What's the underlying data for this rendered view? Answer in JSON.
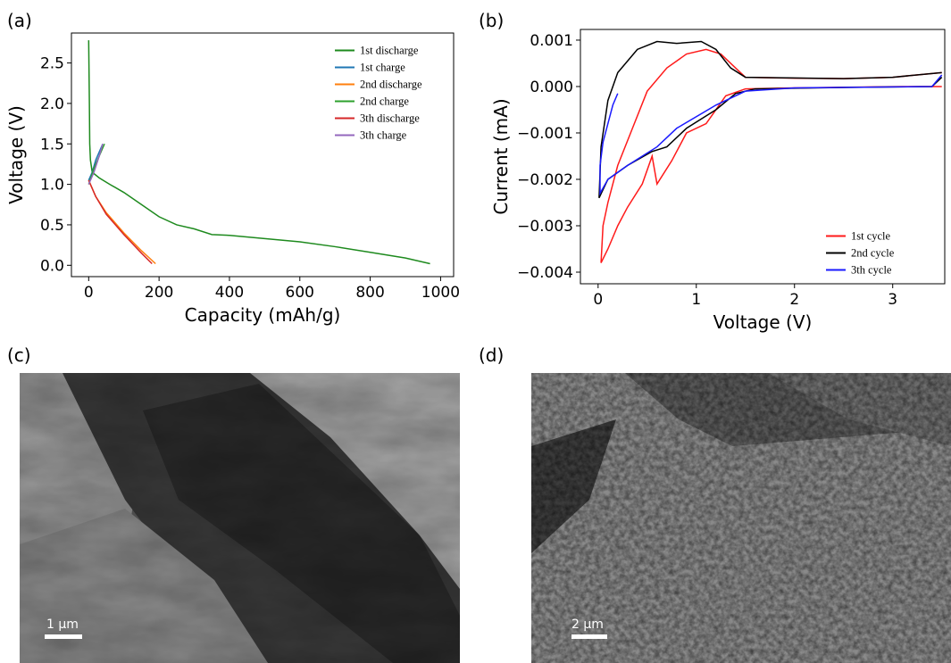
{
  "chart_data": [
    {
      "type": "line",
      "x_label": "Capacity (mAh/g)",
      "y_label": "Voltage (V)",
      "xlim": [
        -49,
        1037
      ],
      "ylim": [
        -0.14,
        2.87
      ],
      "xticks": [
        0,
        200,
        400,
        600,
        800,
        1000
      ],
      "yticks": [
        {
          "value": 0,
          "label": "0.0"
        },
        {
          "value": 0.5,
          "label": "0.5"
        },
        {
          "value": 1,
          "label": "1.0"
        },
        {
          "value": 1.5,
          "label": "1.5"
        },
        {
          "value": 2,
          "label": "2.0"
        },
        {
          "value": 2.5,
          "label": "2.5"
        }
      ],
      "legend": "upper right",
      "series": [
        {
          "name": "1st discharge",
          "color": "#1e8a1e",
          "x": [
            0,
            2,
            3,
            5,
            10,
            30,
            60,
            100,
            150,
            200,
            250,
            300,
            350,
            400,
            500,
            600,
            700,
            800,
            900,
            970
          ],
          "values": [
            2.78,
            2.0,
            1.5,
            1.3,
            1.15,
            1.08,
            1.0,
            0.9,
            0.75,
            0.6,
            0.5,
            0.45,
            0.38,
            0.37,
            0.33,
            0.29,
            0.23,
            0.16,
            0.09,
            0.02
          ]
        },
        {
          "name": "1st charge",
          "color": "#1f77b4",
          "x": [
            0,
            10,
            20,
            30,
            40
          ],
          "values": [
            1.05,
            1.15,
            1.3,
            1.4,
            1.5
          ]
        },
        {
          "name": "2nd discharge",
          "color": "#ff7f0e",
          "x": [
            0,
            20,
            50,
            100,
            150,
            190
          ],
          "values": [
            1.05,
            0.85,
            0.65,
            0.4,
            0.18,
            0.02
          ]
        },
        {
          "name": "2nd charge",
          "color": "#2ca02c",
          "x": [
            0,
            15,
            30,
            45
          ],
          "values": [
            1.0,
            1.2,
            1.35,
            1.5
          ]
        },
        {
          "name": "3th discharge",
          "color": "#d62728",
          "x": [
            0,
            20,
            50,
            100,
            150,
            180
          ],
          "values": [
            1.05,
            0.85,
            0.63,
            0.38,
            0.15,
            0.02
          ]
        },
        {
          "name": "3th charge",
          "color": "#9467bd",
          "x": [
            0,
            15,
            30,
            40
          ],
          "values": [
            1.0,
            1.15,
            1.35,
            1.5
          ]
        }
      ]
    },
    {
      "type": "line",
      "x_label": "Voltage (V)",
      "y_label": "Current (mA)",
      "xlim": [
        -0.18,
        3.53
      ],
      "ylim": [
        -0.00425,
        0.00123
      ],
      "xticks": [
        0,
        1,
        2,
        3
      ],
      "yticks": [
        {
          "value": -0.004,
          "label": "−0.004"
        },
        {
          "value": -0.003,
          "label": "−0.003"
        },
        {
          "value": -0.002,
          "label": "−0.002"
        },
        {
          "value": -0.001,
          "label": "−0.001"
        },
        {
          "value": 0,
          "label": "0.000"
        },
        {
          "value": 0.001,
          "label": "0.001"
        }
      ],
      "legend": "lower right",
      "series": [
        {
          "name": "1st cycle",
          "color": "#ff1a1a",
          "x": [
            3.5,
            3.1,
            2,
            1.5,
            1.3,
            1.2,
            1.1,
            0.9,
            0.75,
            0.6,
            0.55,
            0.45,
            0.3,
            0.2,
            0.1,
            0.03,
            0.05,
            0.1,
            0.2,
            0.35,
            0.5,
            0.7,
            0.9,
            1.1,
            1.25,
            1.4,
            1.5,
            2,
            2.5,
            3,
            3.5
          ],
          "values": [
            0,
            0,
            -3e-05,
            -5e-05,
            -0.0002,
            -0.0005,
            -0.0008,
            -0.001,
            -0.0016,
            -0.0021,
            -0.0015,
            -0.0021,
            -0.0026,
            -0.003,
            -0.0035,
            -0.0038,
            -0.003,
            -0.0025,
            -0.0017,
            -0.0009,
            -0.0001,
            0.0004,
            0.0007,
            0.0008,
            0.0007,
            0.0004,
            0.0002,
            0.00018,
            0.00017,
            0.0002,
            0.0003
          ]
        },
        {
          "name": "2nd cycle",
          "color": "#000000",
          "x": [
            3.5,
            3,
            2.5,
            1.5,
            1.35,
            1.2,
            1.05,
            0.8,
            0.6,
            0.4,
            0.2,
            0.1,
            0.03,
            0.01,
            0.1,
            0.3,
            0.55,
            0.7,
            0.9,
            1.2,
            1.4,
            1.6,
            2.5,
            3.4,
            3.5
          ],
          "values": [
            0.0003,
            0.0002,
            0.00017,
            0.0002,
            0.0004,
            0.0008,
            0.00097,
            0.00093,
            0.00097,
            0.0008,
            0.0003,
            -0.0003,
            -0.0013,
            -0.0024,
            -0.002,
            -0.0017,
            -0.0014,
            -0.0013,
            -0.0009,
            -0.0005,
            -0.00015,
            -5e-05,
            -2e-05,
            0,
            0.0002
          ]
        },
        {
          "name": "3th cycle",
          "color": "#1a1aff",
          "x": [
            3.5,
            3.4,
            2,
            1.5,
            1.2,
            0.8,
            0.6,
            0.3,
            0.1,
            0.02,
            0.02,
            0.05,
            0.1,
            0.15,
            0.2
          ],
          "values": [
            0.00025,
            0,
            -3e-05,
            -0.0001,
            -0.0004,
            -0.0009,
            -0.0013,
            -0.0017,
            -0.002,
            -0.0023,
            -0.0017,
            -0.0012,
            -0.0008,
            -0.0004,
            -0.00015
          ]
        }
      ]
    }
  ],
  "panel_labels": [
    "(a)",
    "(b)",
    "(c)",
    "(d)"
  ],
  "images": [
    {
      "scale_bar": "1 μm"
    },
    {
      "scale_bar": "2 μm"
    }
  ]
}
